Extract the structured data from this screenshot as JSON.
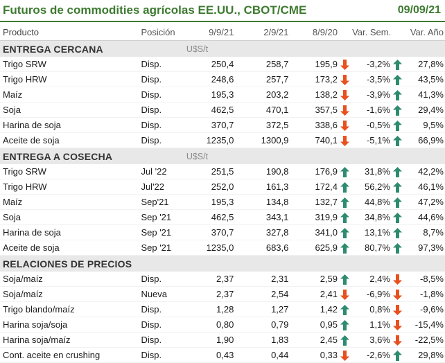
{
  "header": {
    "title": "Futuros de commodities agrícolas EE.UU., CBOT/CME",
    "date": "09/09/21"
  },
  "columns": {
    "producto": "Producto",
    "posicion": "Posición",
    "d1": "9/9/21",
    "d2": "2/9/21",
    "d3": "8/9/20",
    "var_sem": "Var. Sem.",
    "var_anio": "Var. Año"
  },
  "colors": {
    "up": "#2e8b6f",
    "down": "#e8501e",
    "brand": "#3c7a2f"
  },
  "sections": [
    {
      "name": "ENTREGA CERCANA",
      "unit": "U$S/t",
      "rows": [
        {
          "producto": "Trigo SRW",
          "posicion": "Disp.",
          "d1": "250,4",
          "d2": "258,7",
          "d3": "195,9",
          "var_sem": "-3,2%",
          "var_anio": "27,8%",
          "arrow_sem": "down",
          "arrow_anio": "up"
        },
        {
          "producto": "Trigo HRW",
          "posicion": "Disp.",
          "d1": "248,6",
          "d2": "257,7",
          "d3": "173,2",
          "var_sem": "-3,5%",
          "var_anio": "43,5%",
          "arrow_sem": "down",
          "arrow_anio": "up"
        },
        {
          "producto": "Maíz",
          "posicion": "Disp.",
          "d1": "195,3",
          "d2": "203,2",
          "d3": "138,2",
          "var_sem": "-3,9%",
          "var_anio": "41,3%",
          "arrow_sem": "down",
          "arrow_anio": "up"
        },
        {
          "producto": "Soja",
          "posicion": "Disp.",
          "d1": "462,5",
          "d2": "470,1",
          "d3": "357,5",
          "var_sem": "-1,6%",
          "var_anio": "29,4%",
          "arrow_sem": "down",
          "arrow_anio": "up"
        },
        {
          "producto": "Harina de soja",
          "posicion": "Disp.",
          "d1": "370,7",
          "d2": "372,5",
          "d3": "338,6",
          "var_sem": "-0,5%",
          "var_anio": "9,5%",
          "arrow_sem": "down",
          "arrow_anio": "up"
        },
        {
          "producto": "Aceite de soja",
          "posicion": "Disp.",
          "d1": "1235,0",
          "d2": "1300,9",
          "d3": "740,1",
          "var_sem": "-5,1%",
          "var_anio": "66,9%",
          "arrow_sem": "down",
          "arrow_anio": "up"
        }
      ]
    },
    {
      "name": "ENTREGA A COSECHA",
      "unit": "U$S/t",
      "rows": [
        {
          "producto": "Trigo SRW",
          "posicion": "Jul '22",
          "d1": "251,5",
          "d2": "190,8",
          "d3": "176,9",
          "var_sem": "31,8%",
          "var_anio": "42,2%",
          "arrow_sem": "up",
          "arrow_anio": "up"
        },
        {
          "producto": "Trigo HRW",
          "posicion": "Jul'22",
          "d1": "252,0",
          "d2": "161,3",
          "d3": "172,4",
          "var_sem": "56,2%",
          "var_anio": "46,1%",
          "arrow_sem": "up",
          "arrow_anio": "up"
        },
        {
          "producto": "Maíz",
          "posicion": "Sep'21",
          "d1": "195,3",
          "d2": "134,8",
          "d3": "132,7",
          "var_sem": "44,8%",
          "var_anio": "47,2%",
          "arrow_sem": "up",
          "arrow_anio": "up"
        },
        {
          "producto": "Soja",
          "posicion": "Sep '21",
          "d1": "462,5",
          "d2": "343,1",
          "d3": "319,9",
          "var_sem": "34,8%",
          "var_anio": "44,6%",
          "arrow_sem": "up",
          "arrow_anio": "up"
        },
        {
          "producto": "Harina de soja",
          "posicion": "Sep '21",
          "d1": "370,7",
          "d2": "327,8",
          "d3": "341,0",
          "var_sem": "13,1%",
          "var_anio": "8,7%",
          "arrow_sem": "up",
          "arrow_anio": "up"
        },
        {
          "producto": "Aceite de soja",
          "posicion": "Sep '21",
          "d1": "1235,0",
          "d2": "683,6",
          "d3": "625,9",
          "var_sem": "80,7%",
          "var_anio": "97,3%",
          "arrow_sem": "up",
          "arrow_anio": "up"
        }
      ]
    },
    {
      "name": "RELACIONES DE PRECIOS",
      "unit": "",
      "rows": [
        {
          "producto": "Soja/maíz",
          "posicion": "Disp.",
          "d1": "2,37",
          "d2": "2,31",
          "d3": "2,59",
          "var_sem": "2,4%",
          "var_anio": "-8,5%",
          "arrow_sem": "up",
          "arrow_anio": "down"
        },
        {
          "producto": "Soja/maíz",
          "posicion": "Nueva",
          "d1": "2,37",
          "d2": "2,54",
          "d3": "2,41",
          "var_sem": "-6,9%",
          "var_anio": "-1,8%",
          "arrow_sem": "down",
          "arrow_anio": "down"
        },
        {
          "producto": "Trigo blando/maíz",
          "posicion": "Disp.",
          "d1": "1,28",
          "d2": "1,27",
          "d3": "1,42",
          "var_sem": "0,8%",
          "var_anio": "-9,6%",
          "arrow_sem": "up",
          "arrow_anio": "down"
        },
        {
          "producto": "Harina soja/soja",
          "posicion": "Disp.",
          "d1": "0,80",
          "d2": "0,79",
          "d3": "0,95",
          "var_sem": "1,1%",
          "var_anio": "-15,4%",
          "arrow_sem": "up",
          "arrow_anio": "down"
        },
        {
          "producto": "Harina soja/maíz",
          "posicion": "Disp.",
          "d1": "1,90",
          "d2": "1,83",
          "d3": "2,45",
          "var_sem": "3,6%",
          "var_anio": "-22,5%",
          "arrow_sem": "up",
          "arrow_anio": "down"
        },
        {
          "producto": "Cont. aceite en crushing",
          "posicion": "Disp.",
          "d1": "0,43",
          "d2": "0,44",
          "d3": "0,33",
          "var_sem": "-2,6%",
          "var_anio": "29,8%",
          "arrow_sem": "down",
          "arrow_anio": "up"
        }
      ]
    }
  ]
}
